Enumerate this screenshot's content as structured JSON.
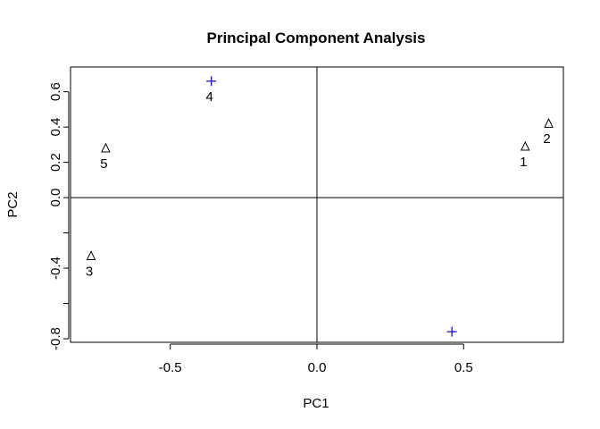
{
  "chart_data": {
    "type": "scatter",
    "title": "Principal Component Analysis",
    "xlabel": "PC1",
    "ylabel": "PC2",
    "xlim": [
      -0.84,
      0.84
    ],
    "ylim": [
      -0.82,
      0.74
    ],
    "x_ticks": [
      -0.5,
      0.0,
      0.5
    ],
    "x_tick_labels": [
      "-0.5",
      "0.0",
      "0.5"
    ],
    "y_ticks": [
      -0.8,
      -0.4,
      0.0,
      0.2,
      0.4,
      0.6
    ],
    "y_tick_labels": [
      "-0.8",
      "-0.4",
      "0.0",
      "0.2",
      "0.4",
      "0.6"
    ],
    "y_minor_ticks": [
      -0.6,
      -0.2
    ],
    "reference_lines": {
      "x": 0,
      "y": 0
    },
    "grid": false,
    "colors": {
      "triangle_marker": "#000000",
      "plus_marker": "#0000cc",
      "frame": "#000000"
    },
    "points": [
      {
        "label": "1",
        "x": 0.71,
        "y": 0.29,
        "marker": "triangle",
        "color": "#000000"
      },
      {
        "label": "2",
        "x": 0.79,
        "y": 0.42,
        "marker": "triangle",
        "color": "#000000"
      },
      {
        "label": "3",
        "x": -0.77,
        "y": -0.33,
        "marker": "triangle",
        "color": "#000000"
      },
      {
        "label": "4",
        "x": -0.36,
        "y": 0.66,
        "marker": "plus",
        "color": "#0000cc"
      },
      {
        "label": "5",
        "x": -0.72,
        "y": 0.28,
        "marker": "triangle",
        "color": "#000000"
      },
      {
        "label": "",
        "x": 0.46,
        "y": -0.76,
        "marker": "plus",
        "color": "#0000cc"
      }
    ]
  }
}
